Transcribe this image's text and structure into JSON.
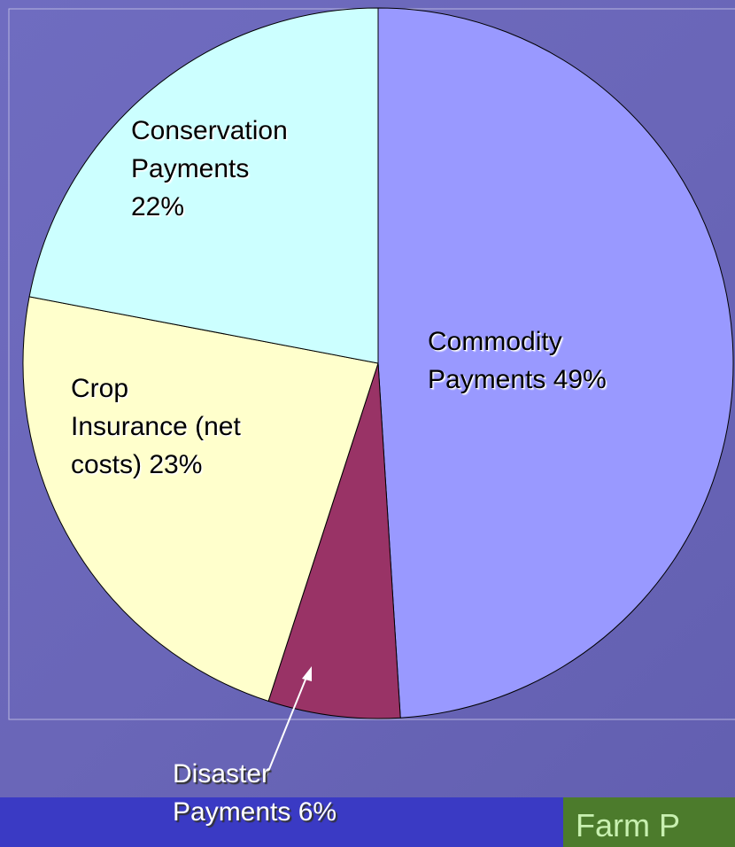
{
  "chart_data": {
    "type": "pie",
    "categories": [
      "Commodity Payments",
      "Disaster Payments",
      "Crop Insurance (net costs)",
      "Conservation Payments"
    ],
    "values": [
      49,
      6,
      23,
      22
    ],
    "value_labels": [
      "49%",
      "6%",
      "23%",
      "22%"
    ],
    "colors": [
      "#9999ff",
      "#993366",
      "#ffffcc",
      "#ccffff"
    ]
  },
  "footer": {
    "title": "Farm P"
  }
}
